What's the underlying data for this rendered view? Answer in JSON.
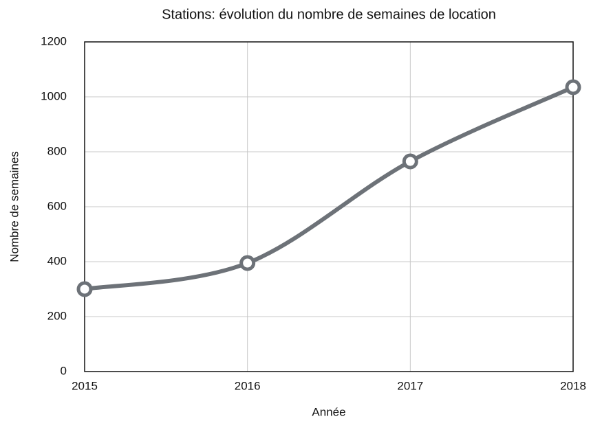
{
  "chart_data": {
    "type": "line",
    "title": "Stations:  évolution du nombre de semaines de location",
    "x_label": "Année",
    "y_label": "Nombre de semaines",
    "x": [
      2015,
      2016,
      2017,
      2018
    ],
    "values": [
      300,
      395,
      765,
      1035
    ],
    "color": "#6d7278",
    "xlim": [
      2015,
      2018
    ],
    "xticks": [
      2015,
      2016,
      2017,
      2018
    ],
    "ylim": [
      0,
      1200
    ],
    "yticks": [
      0,
      200,
      400,
      600,
      800,
      1000,
      1200
    ],
    "grid": true
  }
}
